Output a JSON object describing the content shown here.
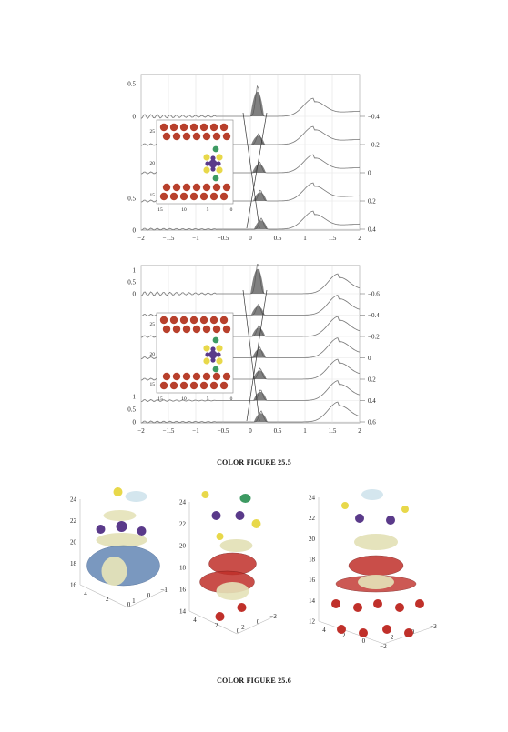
{
  "figure_25_5": {
    "caption": "COLOR FIGURE 25.5",
    "panels": [
      {
        "x_ticks": [
          "-2",
          "-1.5",
          "-1",
          "-0.5",
          "0",
          "0.5",
          "1",
          "1.5",
          "2"
        ],
        "left_y_ticks_top": [
          "0.5",
          "0"
        ],
        "left_y_ticks_bottom": [
          "0.5",
          "0"
        ],
        "right_labels": [
          "-0.4",
          "-0.2",
          "0",
          "0.2",
          "0.4"
        ],
        "inset_y_ticks": [
          "25",
          "20",
          "15"
        ],
        "inset_x_ticks": [
          "15",
          "10",
          "5",
          "0"
        ]
      },
      {
        "x_ticks": [
          "-2",
          "-1.5",
          "-1",
          "-0.5",
          "0",
          "0.5",
          "1",
          "1.5",
          "2"
        ],
        "left_y_ticks_top": [
          "1",
          "0.5",
          "0"
        ],
        "left_y_ticks_bottom": [
          "1",
          "0.5",
          "0"
        ],
        "right_labels": [
          "-0.6",
          "-0.4",
          "-0.2",
          "0",
          "0.2",
          "0.4",
          "0.6"
        ],
        "inset_y_ticks": [
          "25",
          "20",
          "15"
        ],
        "inset_x_ticks": [
          "15",
          "10",
          "5",
          "0"
        ]
      }
    ],
    "colors": {
      "atom_red": "#b8402c",
      "atom_yellow": "#e8d84a",
      "atom_purple": "#5a3a8a",
      "atom_green": "#3d9a62",
      "curve": "#777777",
      "peak_fill": "#555555"
    }
  },
  "figure_25_6": {
    "caption": "COLOR FIGURE 25.6",
    "plots": [
      {
        "z_ticks": [
          "24",
          "22",
          "20",
          "18",
          "16"
        ],
        "axis_a": [
          "4",
          "2",
          "0"
        ],
        "axis_b": [
          "1",
          "0",
          "-1"
        ]
      },
      {
        "z_ticks": [
          "24",
          "22",
          "20",
          "18",
          "16",
          "14"
        ],
        "axis_a": [
          "4",
          "2",
          "0"
        ],
        "axis_b": [
          "2",
          "0",
          "-2"
        ]
      },
      {
        "z_ticks": [
          "24",
          "22",
          "20",
          "18",
          "16",
          "14",
          "12"
        ],
        "axis_a": [
          "4",
          "2",
          "0",
          "-2"
        ],
        "axis_b": [
          "2",
          "0",
          "-2"
        ]
      }
    ],
    "colors": {
      "blue_mesh": "#5a7fb0",
      "cream_surface": "#e4e2b8",
      "red_sphere": "#c0302a",
      "light_blue": "#cfe3ec"
    }
  }
}
